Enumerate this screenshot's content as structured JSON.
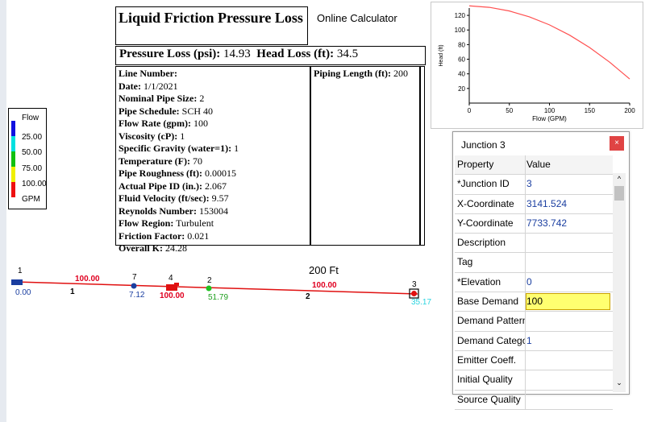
{
  "calculator": {
    "title": "Liquid Friction Pressure Loss",
    "subtitle": "Online Calculator",
    "pressure_loss_label": "Pressure Loss (psi):",
    "pressure_loss_value": "14.93",
    "head_loss_label": "Head Loss (ft):",
    "head_loss_value": "34.5",
    "piping_length_label": "Piping Length (ft):",
    "piping_length_value": "200",
    "rows": [
      {
        "label": "Line Number:",
        "value": ""
      },
      {
        "label": "Date:",
        "value": "1/1/2021"
      },
      {
        "label": "Nominal Pipe Size:",
        "value": "2"
      },
      {
        "label": "Pipe Schedule:",
        "value": "SCH 40"
      },
      {
        "label": "Flow Rate (gpm):",
        "value": "100"
      },
      {
        "label": "Viscosity (cP):",
        "value": "1"
      },
      {
        "label": "Specific Gravity (water=1):",
        "value": "1"
      },
      {
        "label": "Temperature (F):",
        "value": "70"
      },
      {
        "label": "Pipe Roughness (ft):",
        "value": "0.00015"
      },
      {
        "label": "Actual Pipe ID (in.):",
        "value": "2.067"
      },
      {
        "label": "Fluid Velocity (ft/sec):",
        "value": "9.57"
      },
      {
        "label": "Reynolds Number:",
        "value": "153004"
      },
      {
        "label": "Flow Region:",
        "value": "Turbulent"
      },
      {
        "label": "Friction Factor:",
        "value": "0.021"
      },
      {
        "label": "Overall K:",
        "value": "24.28"
      }
    ]
  },
  "legend": {
    "title": "Flow",
    "items": [
      {
        "label": "25.00",
        "color": "#1010e0"
      },
      {
        "label": "50.00",
        "color": "#00e0e0"
      },
      {
        "label": "75.00",
        "color": "#10c010"
      },
      {
        "label": "100.00",
        "color": "#f0f000"
      }
    ],
    "last_color": "#ee1010",
    "unit": "GPM"
  },
  "network": {
    "length_label": "200",
    "length_unit": "Ft",
    "nodes": [
      {
        "id": "1",
        "value": "0.00"
      },
      {
        "id": "7",
        "value": "7.12"
      },
      {
        "id": "4",
        "value": "100.00"
      },
      {
        "id": "2",
        "value": "51.79"
      },
      {
        "id": "3",
        "value": "35.17"
      }
    ],
    "links": [
      {
        "id": "1",
        "flow": "100.00"
      },
      {
        "id": "2",
        "flow": "100.00"
      }
    ]
  },
  "chart_data": {
    "type": "line",
    "title": "",
    "xlabel": "Flow (GPM)",
    "ylabel": "Head (ft)",
    "xlim": [
      0,
      200
    ],
    "ylim": [
      0,
      130
    ],
    "xticks": [
      "0",
      "50",
      "100",
      "150",
      "200"
    ],
    "yticks": [
      "20",
      "40",
      "60",
      "80",
      "100",
      "120"
    ],
    "series": [
      {
        "x": [
          0,
          25,
          50,
          75,
          100,
          125,
          150,
          175,
          200
        ],
        "y": [
          133,
          131,
          126,
          118,
          107,
          93,
          76,
          56,
          33
        ]
      }
    ],
    "line_color": "#ff5050"
  },
  "junction": {
    "window_title": "Junction 3",
    "close_label": "×",
    "col_property": "Property",
    "col_value": "Value",
    "rows": [
      {
        "property": "*Junction ID",
        "value": "3"
      },
      {
        "property": "X-Coordinate",
        "value": "3141.524"
      },
      {
        "property": "Y-Coordinate",
        "value": "7733.742"
      },
      {
        "property": "Description",
        "value": ""
      },
      {
        "property": "Tag",
        "value": ""
      },
      {
        "property": "*Elevation",
        "value": "0"
      },
      {
        "property": "Base Demand",
        "value": "100"
      },
      {
        "property": "Demand Pattern",
        "value": ""
      },
      {
        "property": "Demand Categories",
        "value": "1"
      },
      {
        "property": "Emitter Coeff.",
        "value": ""
      },
      {
        "property": "Initial Quality",
        "value": ""
      },
      {
        "property": "Source Quality",
        "value": ""
      }
    ]
  }
}
